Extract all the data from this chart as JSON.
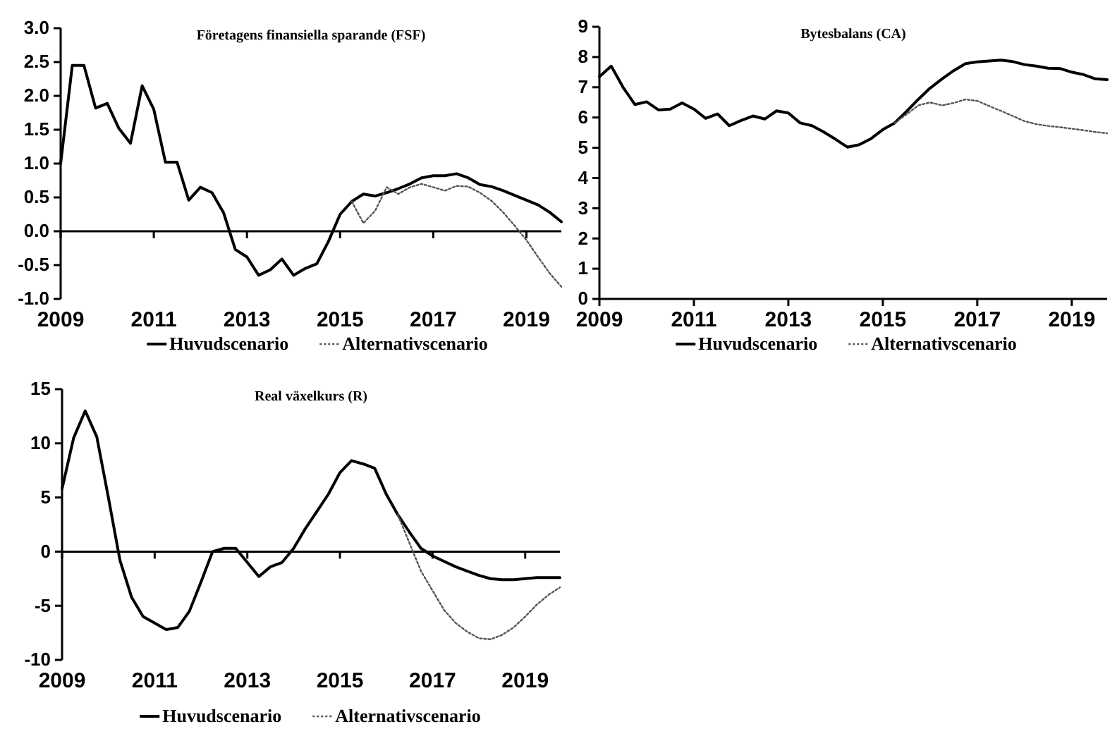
{
  "chart_data": [
    {
      "type": "line",
      "title": "Företagens finansiella sparande (FSF)",
      "xlim": [
        2009,
        2019.75
      ],
      "xticks": [
        2009,
        2011,
        2013,
        2015,
        2017,
        2019
      ],
      "ylim": [
        -1,
        3
      ],
      "ref_lines": [
        {
          "axis": "y",
          "value": 0,
          "color": "#000000",
          "line_style": "solid"
        }
      ],
      "yticks": [
        {
          "value": -1,
          "label": "-1.0"
        },
        {
          "value": -0.5,
          "label": "-0.5"
        },
        {
          "value": 0,
          "label": "0.0"
        },
        {
          "value": 0.5,
          "label": "0.5"
        },
        {
          "value": 1,
          "label": "1.0"
        },
        {
          "value": 1.5,
          "label": "1.5"
        },
        {
          "value": 2,
          "label": "2.0"
        },
        {
          "value": 2.5,
          "label": "2.5"
        },
        {
          "value": 3,
          "label": "3.0"
        }
      ],
      "grid": false,
      "legend": "bottom",
      "x": [
        2009,
        2009.25,
        2009.5,
        2009.75,
        2010,
        2010.25,
        2010.5,
        2010.75,
        2011,
        2011.25,
        2011.5,
        2011.75,
        2012,
        2012.25,
        2012.5,
        2012.75,
        2013,
        2013.25,
        2013.5,
        2013.75,
        2014,
        2014.25,
        2014.5,
        2014.75,
        2015,
        2015.25,
        2015.5,
        2015.75,
        2016,
        2016.25,
        2016.5,
        2016.75,
        2017,
        2017.25,
        2017.5,
        2017.75,
        2018,
        2018.25,
        2018.5,
        2018.75,
        2019,
        2019.25,
        2019.5,
        2019.75
      ],
      "series": [
        {
          "name": "Huvudscenario",
          "color": "#000000",
          "line_style": "solid",
          "values": [
            1.0,
            2.45,
            2.45,
            1.82,
            1.89,
            1.52,
            1.3,
            2.15,
            1.8,
            1.02,
            1.02,
            0.46,
            0.65,
            0.57,
            0.27,
            -0.27,
            -0.38,
            -0.65,
            -0.57,
            -0.41,
            -0.65,
            -0.55,
            -0.48,
            -0.15,
            0.25,
            0.44,
            0.55,
            0.52,
            0.57,
            0.63,
            0.7,
            0.79,
            0.82,
            0.82,
            0.85,
            0.79,
            0.69,
            0.66,
            0.6,
            0.53,
            0.46,
            0.39,
            0.28,
            0.14
          ]
        },
        {
          "name": "Alternativscenario",
          "color": "#555555",
          "line_style": "dotted",
          "values": [
            null,
            null,
            null,
            null,
            null,
            null,
            null,
            null,
            null,
            null,
            null,
            null,
            null,
            null,
            null,
            null,
            null,
            null,
            null,
            null,
            null,
            null,
            null,
            null,
            null,
            0.44,
            0.12,
            0.3,
            0.65,
            0.55,
            0.65,
            0.7,
            0.65,
            0.6,
            0.67,
            0.66,
            0.57,
            0.45,
            0.28,
            0.08,
            -0.13,
            -0.38,
            -0.62,
            -0.82
          ]
        }
      ]
    },
    {
      "type": "line",
      "title": "Bytesbalans (CA)",
      "xlim": [
        2009,
        2019.75
      ],
      "xticks": [
        2009,
        2011,
        2013,
        2015,
        2017,
        2019
      ],
      "ylim": [
        0,
        9
      ],
      "yticks": [
        0,
        1,
        2,
        3,
        4,
        5,
        6,
        7,
        8,
        9
      ],
      "grid": false,
      "legend": "bottom",
      "x": [
        2009,
        2009.25,
        2009.5,
        2009.75,
        2010,
        2010.25,
        2010.5,
        2010.75,
        2011,
        2011.25,
        2011.5,
        2011.75,
        2012,
        2012.25,
        2012.5,
        2012.75,
        2013,
        2013.25,
        2013.5,
        2013.75,
        2014,
        2014.25,
        2014.5,
        2014.75,
        2015,
        2015.25,
        2015.5,
        2015.75,
        2016,
        2016.25,
        2016.5,
        2016.75,
        2017,
        2017.25,
        2017.5,
        2017.75,
        2018,
        2018.25,
        2018.5,
        2018.75,
        2019,
        2019.25,
        2019.5,
        2019.75
      ],
      "series": [
        {
          "name": "Huvudscenario",
          "color": "#000000",
          "line_style": "solid",
          "values": [
            7.35,
            7.7,
            7.0,
            6.43,
            6.52,
            6.25,
            6.28,
            6.48,
            6.28,
            5.97,
            6.12,
            5.73,
            5.9,
            6.05,
            5.95,
            6.22,
            6.15,
            5.82,
            5.73,
            5.52,
            5.28,
            5.02,
            5.1,
            5.3,
            5.6,
            5.82,
            6.2,
            6.6,
            6.97,
            7.27,
            7.55,
            7.78,
            7.84,
            7.87,
            7.9,
            7.85,
            7.75,
            7.7,
            7.63,
            7.62,
            7.5,
            7.42,
            7.28,
            7.25
          ]
        },
        {
          "name": "Alternativscenario",
          "color": "#555555",
          "line_style": "dotted",
          "values": [
            null,
            null,
            null,
            null,
            null,
            null,
            null,
            null,
            null,
            null,
            null,
            null,
            null,
            null,
            null,
            null,
            null,
            null,
            null,
            null,
            null,
            null,
            null,
            null,
            null,
            5.82,
            6.1,
            6.4,
            6.5,
            6.4,
            6.48,
            6.6,
            6.55,
            6.38,
            6.22,
            6.05,
            5.88,
            5.78,
            5.72,
            5.68,
            5.63,
            5.58,
            5.52,
            5.48
          ]
        }
      ]
    },
    {
      "type": "line",
      "title": "Real växelkurs (R)",
      "xlim": [
        2009,
        2019.75
      ],
      "xticks": [
        2009,
        2011,
        2013,
        2015,
        2017,
        2019
      ],
      "ylim": [
        -10,
        15
      ],
      "ref_lines": [
        {
          "axis": "y",
          "value": 0,
          "color": "#000000",
          "line_style": "solid"
        }
      ],
      "yticks": [
        -10,
        -5,
        0,
        5,
        10,
        15
      ],
      "grid": false,
      "legend": "bottom",
      "x": [
        2009,
        2009.25,
        2009.5,
        2009.75,
        2010,
        2010.25,
        2010.5,
        2010.75,
        2011,
        2011.25,
        2011.5,
        2011.75,
        2012,
        2012.25,
        2012.5,
        2012.75,
        2013,
        2013.25,
        2013.5,
        2013.75,
        2014,
        2014.25,
        2014.5,
        2014.75,
        2015,
        2015.25,
        2015.5,
        2015.75,
        2016,
        2016.25,
        2016.5,
        2016.75,
        2017,
        2017.25,
        2017.5,
        2017.75,
        2018,
        2018.25,
        2018.5,
        2018.75,
        2019,
        2019.25,
        2019.5,
        2019.75
      ],
      "series": [
        {
          "name": "Huvudscenario",
          "color": "#000000",
          "line_style": "solid",
          "values": [
            5.8,
            10.5,
            13.0,
            10.6,
            5.0,
            -0.8,
            -4.2,
            -6.0,
            -6.6,
            -7.2,
            -7.0,
            -5.5,
            -2.8,
            0.0,
            0.3,
            0.3,
            -1.0,
            -2.3,
            -1.4,
            -1.0,
            0.3,
            2.1,
            3.7,
            5.3,
            7.3,
            8.4,
            8.1,
            7.7,
            5.3,
            3.4,
            1.8,
            0.3,
            -0.4,
            -0.9,
            -1.4,
            -1.8,
            -2.2,
            -2.5,
            -2.6,
            -2.6,
            -2.5,
            -2.4,
            -2.4,
            -2.4
          ]
        },
        {
          "name": "Alternativscenario",
          "color": "#555555",
          "line_style": "dotted",
          "values": [
            null,
            null,
            null,
            null,
            null,
            null,
            null,
            null,
            null,
            null,
            null,
            null,
            null,
            null,
            null,
            null,
            null,
            null,
            null,
            null,
            null,
            null,
            null,
            null,
            null,
            null,
            null,
            null,
            null,
            3.4,
            0.8,
            -1.8,
            -3.6,
            -5.4,
            -6.6,
            -7.4,
            -8.0,
            -8.1,
            -7.7,
            -7.0,
            -6.0,
            -4.9,
            -4.0,
            -3.3
          ]
        }
      ]
    }
  ]
}
